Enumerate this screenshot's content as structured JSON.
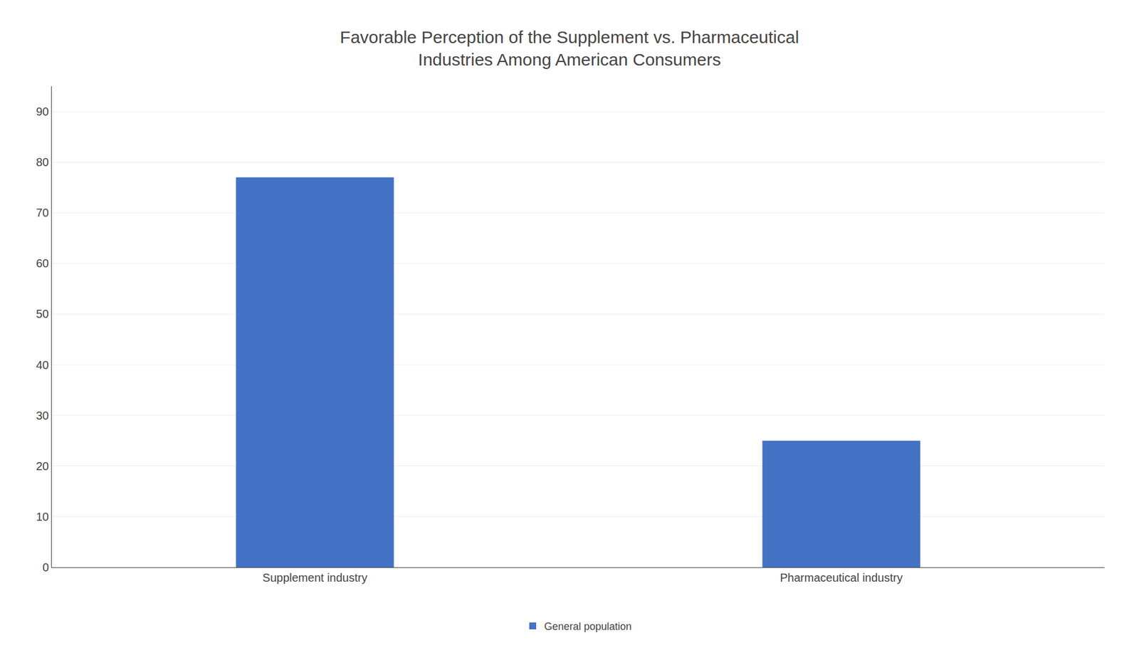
{
  "chart_data": {
    "type": "bar",
    "title": "Favorable Perception of the Supplement vs. Pharmaceutical\nIndustries Among American Consumers",
    "categories": [
      "Supplement industry",
      "Pharmaceutical industry"
    ],
    "series": [
      {
        "name": "General population",
        "color": "#4472C4",
        "values": [
          77,
          25
        ]
      }
    ],
    "ylim": [
      0,
      95
    ],
    "yticks": [
      0,
      10,
      20,
      30,
      40,
      50,
      60,
      70,
      80,
      90
    ],
    "grid": true,
    "legend": "bottom"
  }
}
